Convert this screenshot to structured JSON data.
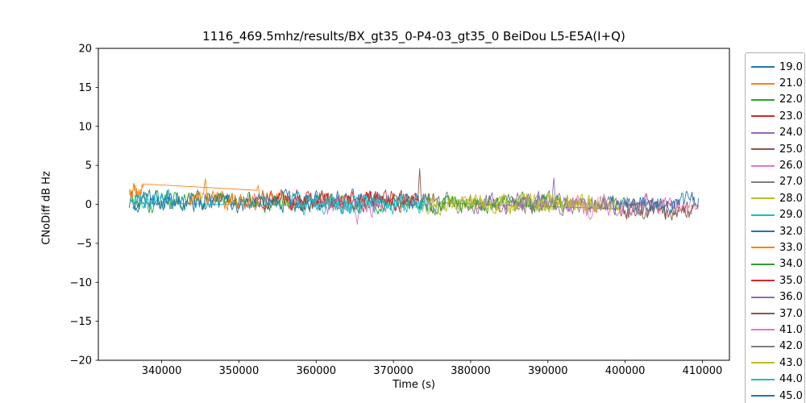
{
  "chart_data": {
    "type": "line",
    "title": "1116_469.5mhz/results/BX_gt35_0-P4-03_gt35_0 BeiDou L5-E5A(I+Q)",
    "xlabel": "Time (s)",
    "ylabel": "CNoDiff dB Hz",
    "xlim": [
      331800,
      413500
    ],
    "ylim": [
      -20,
      20
    ],
    "xticks": [
      340000,
      350000,
      360000,
      370000,
      380000,
      390000,
      400000,
      410000
    ],
    "xtick_labels": [
      "340000",
      "350000",
      "360000",
      "370000",
      "380000",
      "390000",
      "400000",
      "410000"
    ],
    "yticks": [
      -20,
      -15,
      -10,
      -5,
      0,
      5,
      10,
      15,
      20
    ],
    "ytick_labels": [
      "−20",
      "−15",
      "−10",
      "−5",
      "0",
      "5",
      "10",
      "15",
      "20"
    ],
    "grid": false,
    "legend_position": "outside-right",
    "legend_last_entry_cropped": true,
    "noise_description": "All series are band-limited noise traces centered near 0 dB, roughly ±1.5 dB peak-to-peak, spanning Time ≈ 335800 s to 409500 s",
    "series": [
      {
        "name": "19.0",
        "color": "#1f77b4",
        "segments": [
          {
            "x0": 335800,
            "x1": 373800,
            "mean": 0.4,
            "amp": 1.0
          }
        ]
      },
      {
        "name": "21.0",
        "color": "#ff7f0e",
        "segments": [
          {
            "x0": 335800,
            "x1": 337600,
            "mean": 1.7,
            "amp": 0.8
          },
          {
            "x0": 352300,
            "x1": 356800,
            "mean": 0.9,
            "amp": 0.9
          }
        ]
      },
      {
        "name": "22.0",
        "color": "#2ca02c",
        "segments": [
          {
            "x0": 336000,
            "x1": 374000,
            "mean": 0.3,
            "amp": 1.0
          }
        ]
      },
      {
        "name": "23.0",
        "color": "#d62728",
        "segments": [
          {
            "x0": 352000,
            "x1": 374500,
            "mean": 0.5,
            "amp": 1.0
          }
        ]
      },
      {
        "name": "24.0",
        "color": "#9467bd",
        "segments": [
          {
            "x0": 385500,
            "x1": 398000,
            "mean": 0.1,
            "amp": 1.0
          }
        ],
        "spikes": [
          {
            "x": 390800,
            "y": 3.4
          }
        ]
      },
      {
        "name": "25.0",
        "color": "#8c564b",
        "segments": [
          {
            "x0": 371500,
            "x1": 376500,
            "mean": 0.3,
            "amp": 1.0
          },
          {
            "x0": 399000,
            "x1": 409000,
            "mean": -0.6,
            "amp": 1.0
          }
        ],
        "spikes": [
          {
            "x": 373400,
            "y": 4.6
          }
        ]
      },
      {
        "name": "26.0",
        "color": "#e377c2",
        "segments": [
          {
            "x0": 361000,
            "x1": 368200,
            "mean": -0.2,
            "amp": 1.1
          }
        ],
        "spikes": [
          {
            "x": 365300,
            "y": -2.6
          }
        ]
      },
      {
        "name": "27.0",
        "color": "#7f7f7f",
        "segments": [
          {
            "x0": 373500,
            "x1": 403500,
            "mean": 0.1,
            "amp": 1.0
          }
        ]
      },
      {
        "name": "28.0",
        "color": "#bcbd22",
        "segments": [
          {
            "x0": 373800,
            "x1": 399500,
            "mean": 0.0,
            "amp": 1.0
          }
        ]
      },
      {
        "name": "29.0",
        "color": "#17becf",
        "segments": [
          {
            "x0": 336200,
            "x1": 341500,
            "mean": 0.4,
            "amp": 1.0
          },
          {
            "x0": 356500,
            "x1": 374500,
            "mean": 0.2,
            "amp": 1.0
          }
        ]
      },
      {
        "name": "32.0",
        "color": "#1f77b4",
        "segments": [
          {
            "x0": 336500,
            "x1": 360500,
            "mean": 0.3,
            "amp": 1.0
          }
        ]
      },
      {
        "name": "33.0",
        "color": "#ff7f0e",
        "segments": [
          {
            "x0": 343500,
            "x1": 352500,
            "mean": 0.6,
            "amp": 1.0
          }
        ],
        "spikes": [
          {
            "x": 345700,
            "y": 3.3
          }
        ]
      },
      {
        "name": "34.0",
        "color": "#2ca02c",
        "segments": [
          {
            "x0": 374500,
            "x1": 392500,
            "mean": 0.1,
            "amp": 1.0
          }
        ]
      },
      {
        "name": "35.0",
        "color": "#d62728",
        "segments": [
          {
            "x0": 356500,
            "x1": 372500,
            "mean": 0.4,
            "amp": 1.0
          }
        ]
      },
      {
        "name": "36.0",
        "color": "#9467bd",
        "segments": [
          {
            "x0": 380500,
            "x1": 393500,
            "mean": 0.0,
            "amp": 1.0
          }
        ]
      },
      {
        "name": "37.0",
        "color": "#8c564b",
        "segments": [
          {
            "x0": 399500,
            "x1": 408800,
            "mean": -0.7,
            "amp": 1.0
          }
        ]
      },
      {
        "name": "41.0",
        "color": "#e377c2",
        "segments": [
          {
            "x0": 392500,
            "x1": 409500,
            "mean": -0.2,
            "amp": 1.1
          }
        ]
      },
      {
        "name": "42.0",
        "color": "#7f7f7f",
        "segments": [
          {
            "x0": 396500,
            "x1": 403500,
            "mean": 0.3,
            "amp": 0.9,
            "trend": -1.2
          }
        ]
      },
      {
        "name": "43.0",
        "color": "#bcbd22",
        "segments": [
          {
            "x0": 377000,
            "x1": 396500,
            "mean": 0.1,
            "amp": 1.0
          }
        ]
      },
      {
        "name": "44.0",
        "color": "#17becf",
        "segments": [
          {
            "x0": 357500,
            "x1": 374500,
            "mean": 0.1,
            "amp": 1.0
          }
        ]
      },
      {
        "name": "45.0",
        "color": "#1f77b4",
        "segments": [
          {
            "x0": 398000,
            "x1": 409500,
            "mean": 0.2,
            "amp": 1.0
          }
        ]
      }
    ]
  }
}
